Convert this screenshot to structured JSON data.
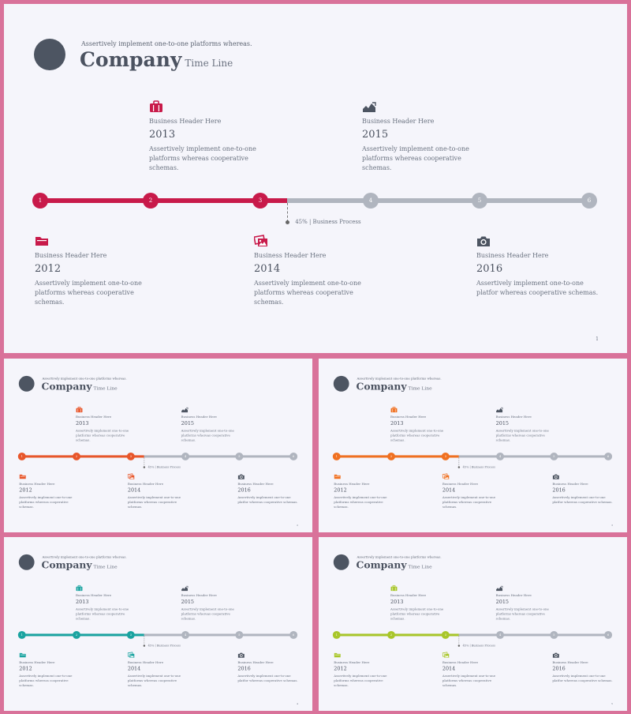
{
  "slides": [
    {
      "accent": "#c81a4a",
      "tagline": "Assertively implement one-to-one platforms whereas.",
      "title": "Company",
      "subtitle": "Time Line",
      "top_blocks": [
        {
          "icon": "briefcase-icon",
          "header": "Business Header Here",
          "year": "2013",
          "desc": "Assertively implement one-to-one platforms whereas cooperative schemas."
        },
        {
          "icon": "area-chart-icon",
          "header": "Business Header Here",
          "year": "2015",
          "desc": "Assertively implement one-to-one platforms whereas cooperative schemas."
        }
      ],
      "bottom_blocks": [
        {
          "icon": "folder-icon",
          "header": "Business Header Here",
          "year": "2012",
          "desc": "Assertively implement one-to-one platforms whereas cooperative schemas."
        },
        {
          "icon": "picture-icon",
          "header": "Business Header Here",
          "year": "2014",
          "desc": "Assertively implement one-to-one platforms whereas cooperative schemas."
        },
        {
          "icon": "camera-icon",
          "header": "Business Header Here",
          "year": "2016",
          "desc": "Assertively implement one-to-one platfor whereas cooperative schemas."
        }
      ],
      "nodes": [
        "1",
        "2",
        "3",
        "4",
        "5",
        "6"
      ],
      "progress": 0.45,
      "active_nodes": 3,
      "progress_label": "45% | Business Process",
      "page": "1"
    },
    {
      "accent": "#e8562a",
      "tagline": "Assertively implement one-to-one platforms whereas.",
      "title": "Company",
      "subtitle": "Time Line",
      "top_blocks": [
        {
          "icon": "briefcase-icon",
          "header": "Business Header Here",
          "year": "2013",
          "desc": "Assertively implement one-to-one platforms whereas cooperative schemas."
        },
        {
          "icon": "area-chart-icon",
          "header": "Business Header Here",
          "year": "2015",
          "desc": "Assertively implement one-to-one platforms whereas cooperative schemas."
        }
      ],
      "bottom_blocks": [
        {
          "icon": "folder-icon",
          "header": "Business Header Here",
          "year": "2012",
          "desc": "Assertively implement one-to-one platforms whereas cooperative schemas."
        },
        {
          "icon": "picture-icon",
          "header": "Business Header Here",
          "year": "2014",
          "desc": "Assertively implement one-to-one platforms whereas cooperative schemas."
        },
        {
          "icon": "camera-icon",
          "header": "Business Header Here",
          "year": "2016",
          "desc": "Assertively implement one-to-one platfor whereas cooperative schemas."
        }
      ],
      "nodes": [
        "1",
        "2",
        "3",
        "4",
        "5",
        "6"
      ],
      "progress": 0.45,
      "active_nodes": 3,
      "progress_label": "45% | Business Process",
      "page": "2"
    },
    {
      "accent": "#f07020",
      "tagline": "Assertively implement one-to-one platforms whereas.",
      "title": "Company",
      "subtitle": "Time Line",
      "top_blocks": [
        {
          "icon": "briefcase-icon",
          "header": "Business Header Here",
          "year": "2013",
          "desc": "Assertively implement one-to-one platforms whereas cooperative schemas."
        },
        {
          "icon": "area-chart-icon",
          "header": "Business Header Here",
          "year": "2015",
          "desc": "Assertively implement one-to-one platforms whereas cooperative schemas."
        }
      ],
      "bottom_blocks": [
        {
          "icon": "folder-icon",
          "header": "Business Header Here",
          "year": "2012",
          "desc": "Assertively implement one-to-one platforms whereas cooperative schemas."
        },
        {
          "icon": "picture-icon",
          "header": "Business Header Here",
          "year": "2014",
          "desc": "Assertively implement one-to-one platforms whereas cooperative schemas."
        },
        {
          "icon": "camera-icon",
          "header": "Business Header Here",
          "year": "2016",
          "desc": "Assertively implement one-to-one platfor whereas cooperative schemas."
        }
      ],
      "nodes": [
        "1",
        "2",
        "3",
        "4",
        "5",
        "6"
      ],
      "progress": 0.45,
      "active_nodes": 3,
      "progress_label": "45% | Business Process",
      "page": "3"
    },
    {
      "accent": "#1aa3a0",
      "tagline": "Assertively implement one-to-one platforms whereas.",
      "title": "Company",
      "subtitle": "Time Line",
      "top_blocks": [
        {
          "icon": "briefcase-icon",
          "header": "Business Header Here",
          "year": "2013",
          "desc": "Assertively implement one-to-one platforms whereas cooperative schemas."
        },
        {
          "icon": "area-chart-icon",
          "header": "Business Header Here",
          "year": "2015",
          "desc": "Assertively implement one-to-one platforms whereas cooperative schemas."
        }
      ],
      "bottom_blocks": [
        {
          "icon": "folder-icon",
          "header": "Business Header Here",
          "year": "2012",
          "desc": "Assertively implement one-to-one platforms whereas cooperative schemas."
        },
        {
          "icon": "picture-icon",
          "header": "Business Header Here",
          "year": "2014",
          "desc": "Assertively implement one-to-one platforms whereas cooperative schemas."
        },
        {
          "icon": "camera-icon",
          "header": "Business Header Here",
          "year": "2016",
          "desc": "Assertively implement one-to-one platfor whereas cooperative schemas."
        }
      ],
      "nodes": [
        "1",
        "2",
        "3",
        "4",
        "5",
        "6"
      ],
      "progress": 0.45,
      "active_nodes": 3,
      "progress_label": "45% | Business Process",
      "page": "4"
    },
    {
      "accent": "#a8c62a",
      "tagline": "Assertively implement one-to-one platforms whereas.",
      "title": "Company",
      "subtitle": "Time Line",
      "top_blocks": [
        {
          "icon": "briefcase-icon",
          "header": "Business Header Here",
          "year": "2013",
          "desc": "Assertively implement one-to-one platforms whereas cooperative schemas."
        },
        {
          "icon": "area-chart-icon",
          "header": "Business Header Here",
          "year": "2015",
          "desc": "Assertively implement one-to-one platforms whereas cooperative schemas."
        }
      ],
      "bottom_blocks": [
        {
          "icon": "folder-icon",
          "header": "Business Header Here",
          "year": "2012",
          "desc": "Assertively implement one-to-one platforms whereas cooperative schemas."
        },
        {
          "icon": "picture-icon",
          "header": "Business Header Here",
          "year": "2014",
          "desc": "Assertively implement one-to-one platforms whereas cooperative schemas."
        },
        {
          "icon": "camera-icon",
          "header": "Business Header Here",
          "year": "2016",
          "desc": "Assertively implement one-to-one platfor whereas cooperative schemas."
        }
      ],
      "nodes": [
        "1",
        "2",
        "3",
        "4",
        "5",
        "6"
      ],
      "progress": 0.45,
      "active_nodes": 3,
      "progress_label": "45% | Business Process",
      "page": "5"
    }
  ]
}
